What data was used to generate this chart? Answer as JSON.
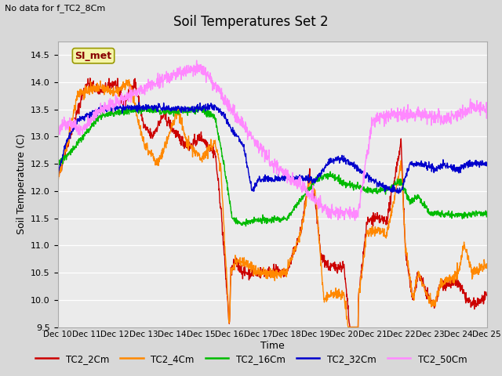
{
  "title": "Soil Temperatures Set 2",
  "subtitle": "No data for f_TC2_8Cm",
  "ylabel": "Soil Temperature (C)",
  "xlabel": "Time",
  "ylim": [
    9.5,
    14.75
  ],
  "bg_color": "#d8d8d8",
  "plot_bg": "#ebebeb",
  "grid_color": "white",
  "xtick_labels": [
    "Dec 10",
    "Dec 11",
    "Dec 12",
    "Dec 13",
    "Dec 14",
    "Dec 15",
    "Dec 16",
    "Dec 17",
    "Dec 18",
    "Dec 19",
    "Dec 20",
    "Dec 21",
    "Dec 22",
    "Dec 23",
    "Dec 24",
    "Dec 25"
  ],
  "legend_labels": [
    "TC2_2Cm",
    "TC2_4Cm",
    "TC2_16Cm",
    "TC2_32Cm",
    "TC2_50Cm"
  ],
  "line_colors": [
    "#cc0000",
    "#ff8800",
    "#00bb00",
    "#0000cc",
    "#ff88ff"
  ],
  "SI_met_label": "SI_met",
  "n_points": 1500
}
